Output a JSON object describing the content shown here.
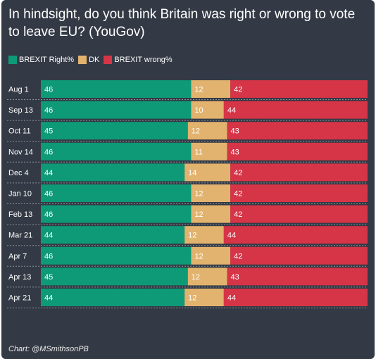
{
  "chart_data": {
    "type": "bar",
    "orientation": "horizontal",
    "stacked": true,
    "title": "In hindsight, do you think Britain was right or wrong to vote to leave EU? (YouGov)",
    "categories": [
      "Aug 1",
      "Sep 13",
      "Oct 11",
      "Nov 14",
      "Dec 4",
      "Jan 10",
      "Feb 13",
      "Mar 21",
      "Apr 7",
      "Apr 13",
      "Apr 21"
    ],
    "series": [
      {
        "name": "BREXIT Right%",
        "color": "#0e9a77",
        "values": [
          46,
          46,
          45,
          46,
          44,
          46,
          46,
          44,
          46,
          45,
          44
        ]
      },
      {
        "name": "DK",
        "color": "#e2b36e",
        "values": [
          12,
          10,
          12,
          11,
          14,
          12,
          12,
          12,
          12,
          12,
          12
        ]
      },
      {
        "name": "BREXIT wrong%",
        "color": "#d63447",
        "values": [
          42,
          44,
          43,
          43,
          42,
          42,
          42,
          44,
          42,
          43,
          44
        ]
      }
    ],
    "legend_position": "top-left",
    "data_labels": true
  },
  "footer": {
    "credit": "Chart: @MSmithsonPB"
  }
}
